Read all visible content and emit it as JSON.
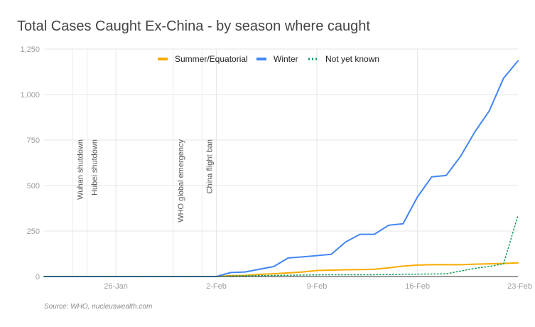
{
  "chart_data": {
    "type": "line",
    "title": "Total Cases Caught Ex-China - by season where caught",
    "source": "Source: WHO, nucleuswealth.com",
    "xlabel": "",
    "ylabel": "",
    "x": [
      "Jan-21",
      "Jan-22",
      "Jan-23",
      "Jan-24",
      "Jan-25",
      "Jan-26",
      "Jan-27",
      "Jan-28",
      "Jan-29",
      "Jan-30",
      "Jan-31",
      "Feb-01",
      "Feb-02",
      "Feb-03",
      "Feb-04",
      "Feb-05",
      "Feb-06",
      "Feb-07",
      "Feb-08",
      "Feb-09",
      "Feb-10",
      "Feb-11",
      "Feb-12",
      "Feb-13",
      "Feb-14",
      "Feb-15",
      "Feb-16",
      "Feb-17",
      "Feb-18",
      "Feb-19",
      "Feb-20",
      "Feb-21",
      "Feb-22",
      "Feb-23"
    ],
    "x_ticks": [
      {
        "label": "26-Jan",
        "x": "Jan-26"
      },
      {
        "label": "2-Feb",
        "x": "Feb-02"
      },
      {
        "label": "9-Feb",
        "x": "Feb-09"
      },
      {
        "label": "16-Feb",
        "x": "Feb-16"
      },
      {
        "label": "23-Feb",
        "x": "Feb-23"
      }
    ],
    "y_ticks": [
      "0",
      "250",
      "500",
      "750",
      "1,000",
      "1,250"
    ],
    "ylim": [
      0,
      1250
    ],
    "grid": true,
    "legend_position": "top",
    "series": [
      {
        "name": "Summer/Equatorial",
        "color": "#f9ab00",
        "style": "solid",
        "values": [
          0,
          0,
          0,
          0,
          0,
          0,
          0,
          0,
          0,
          0,
          0,
          0,
          0,
          5,
          6,
          12,
          15,
          20,
          25,
          33,
          35,
          37,
          38,
          40,
          48,
          57,
          63,
          65,
          65,
          65,
          68,
          70,
          72,
          75
        ]
      },
      {
        "name": "Winter",
        "color": "#4285f4",
        "style": "solid",
        "values": [
          0,
          0,
          0,
          0,
          0,
          0,
          0,
          0,
          0,
          0,
          0,
          0,
          0,
          22,
          25,
          40,
          55,
          102,
          108,
          115,
          122,
          190,
          232,
          232,
          282,
          290,
          437,
          548,
          555,
          660,
          795,
          910,
          1090,
          1185
        ]
      },
      {
        "name": "Not yet known",
        "color": "#0f9d58",
        "style": "dotted",
        "values": [
          0,
          0,
          0,
          0,
          0,
          0,
          0,
          0,
          0,
          0,
          0,
          0,
          0,
          3,
          4,
          5,
          6,
          7,
          8,
          9,
          10,
          10,
          10,
          10,
          11,
          12,
          13,
          14,
          15,
          30,
          45,
          55,
          70,
          335
        ]
      }
    ],
    "annotations": [
      {
        "label": "Wuhan shutdown",
        "x": "Jan-23"
      },
      {
        "label": "Hubei shutdown",
        "x": "Jan-24"
      },
      {
        "label": "WHO global emergency",
        "x": "Jan-30"
      },
      {
        "label": "China flight ban",
        "x": "Feb-01"
      }
    ]
  }
}
